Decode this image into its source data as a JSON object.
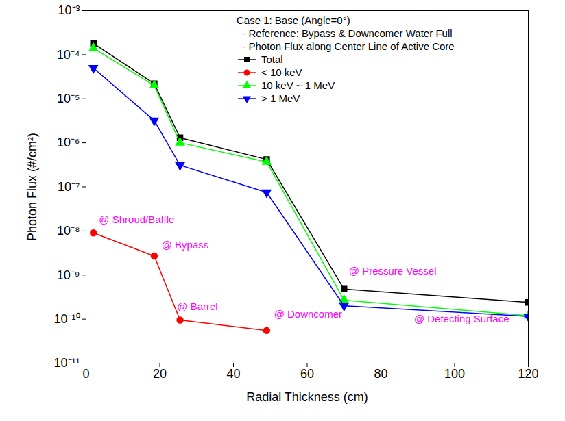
{
  "chart_data": {
    "type": "line",
    "x_label": "Radial Thickness (cm)",
    "y_label": "Photon Flux (#/cm²)",
    "legend_title": [
      "Case 1: Base (Angle=0°)",
      "  - Reference: Bypass & Downcomer Water Full",
      "  - Photon Flux along Center Line of Active Core"
    ],
    "legend": "upper right",
    "log": "y",
    "x": [
      2,
      18.5,
      25.5,
      49,
      70,
      120
    ],
    "series": [
      {
        "name": "Total",
        "color": "#000000",
        "marker": "square",
        "values": [
          0.00018,
          2.2e-05,
          1.3e-06,
          4.2e-07,
          4.8e-10,
          2.4e-10
        ]
      },
      {
        "name": "< 10 keV",
        "color": "#ff0000",
        "marker": "circle",
        "values": [
          9e-09,
          2.7e-09,
          9.5e-11,
          5.5e-11,
          null,
          null
        ]
      },
      {
        "name": "10 keV ~ 1 MeV",
        "color": "#00ff00",
        "marker": "triangle",
        "values": [
          0.00014,
          2e-05,
          1e-06,
          3.7e-07,
          2.7e-10,
          1.2e-10
        ]
      },
      {
        "name": "> 1 MeV",
        "color": "#0000ff",
        "marker": "triangle-down",
        "values": [
          5e-05,
          3.2e-06,
          3.1e-07,
          7.5e-08,
          2e-10,
          1.15e-10
        ]
      }
    ],
    "annotations": [
      {
        "text": "@ Shroud/Baffle",
        "x": 3.5,
        "y": 1.8e-08
      },
      {
        "text": "@ Bypass",
        "x": 20.5,
        "y": 4.7e-09
      },
      {
        "text": "@ Barrel",
        "x": 24.7,
        "y": 1.9e-10
      },
      {
        "text": "@ Downcomer",
        "x": 51,
        "y": 1.3e-10
      },
      {
        "text": "@ Pressure Vessel",
        "x": 71.3,
        "y": 1.2e-09
      },
      {
        "text": "@ Detecting Surface",
        "x": 89,
        "y": 1e-10
      }
    ],
    "xlim": [
      0,
      120
    ],
    "xticks": [
      0,
      20,
      40,
      60,
      80,
      100,
      120
    ],
    "ylim": [
      1e-11,
      0.001
    ],
    "yticks": [
      {
        "value": 1e-11,
        "label": "10⁻¹¹"
      },
      {
        "value": 1e-10,
        "label": "10⁻¹⁰"
      },
      {
        "value": 1e-09,
        "label": "10⁻⁹"
      },
      {
        "value": 1e-08,
        "label": "10⁻⁸"
      },
      {
        "value": 1e-07,
        "label": "10⁻⁷"
      },
      {
        "value": 1e-06,
        "label": "10⁻⁶"
      },
      {
        "value": 1e-05,
        "label": "10⁻⁵"
      },
      {
        "value": 0.0001,
        "label": "10⁻⁴"
      },
      {
        "value": 0.001,
        "label": "10⁻³"
      }
    ],
    "grid": false
  }
}
